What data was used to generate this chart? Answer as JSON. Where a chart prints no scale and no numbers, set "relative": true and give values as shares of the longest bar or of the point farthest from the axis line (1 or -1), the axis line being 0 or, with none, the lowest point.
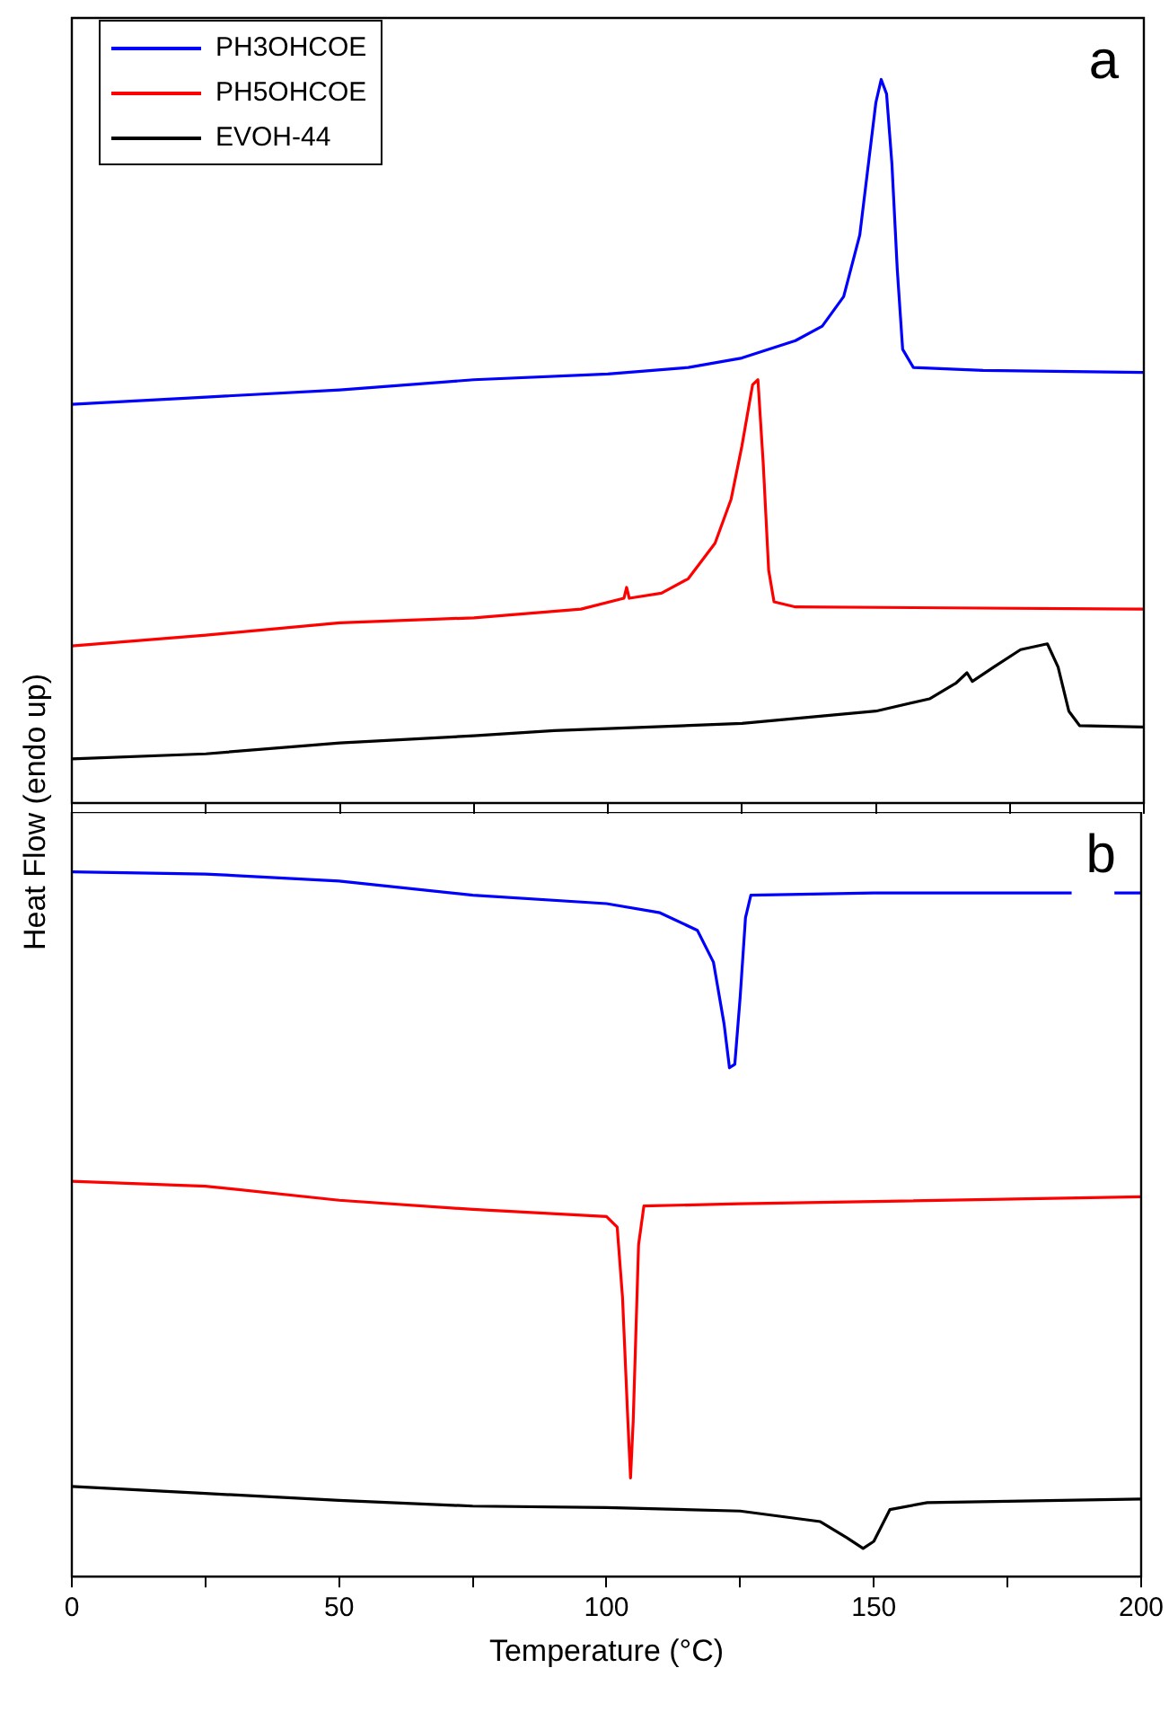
{
  "chart_data": [
    {
      "type": "line",
      "relative": true,
      "ylabel": "Heat Flow (endo up)",
      "xlim": [
        0,
        200
      ],
      "xticks": [
        0,
        {
          "value": 25,
          "label": null
        },
        50,
        {
          "value": 75,
          "label": null
        },
        100,
        {
          "value": 125,
          "label": null
        },
        150,
        {
          "value": 175,
          "label": null
        },
        200
      ],
      "tick_labels": false,
      "legend": "top left",
      "grid": false,
      "marker": "none",
      "line_style": "solid",
      "annotations": [
        "a"
      ],
      "series": [
        {
          "name": "PH3OHCOE",
          "color": "#0000ff",
          "x": [
            0,
            25,
            50,
            75,
            100,
            115,
            125,
            135,
            140,
            144,
            147,
            149,
            150,
            151,
            152,
            153,
            154,
            155,
            157,
            170,
            200
          ],
          "values": [
            0.551,
            0.561,
            0.571,
            0.585,
            0.593,
            0.602,
            0.615,
            0.639,
            0.659,
            0.7,
            0.785,
            0.907,
            0.968,
            1,
            0.98,
            0.883,
            0.737,
            0.627,
            0.602,
            0.598,
            0.595
          ]
        },
        {
          "name": "PH5OHCOE",
          "color": "#ff0000",
          "x": [
            0,
            25,
            50,
            75,
            95,
            103,
            103.5,
            104,
            110,
            115,
            120,
            123,
            125,
            127,
            128,
            129,
            130,
            131,
            135,
            200
          ],
          "values": [
            0.217,
            0.232,
            0.249,
            0.256,
            0.268,
            0.283,
            0.298,
            0.283,
            0.29,
            0.31,
            0.359,
            0.42,
            0.493,
            0.578,
            0.585,
            0.468,
            0.322,
            0.278,
            0.271,
            0.268
          ]
        },
        {
          "name": "EVOH-44",
          "color": "#000000",
          "x": [
            0,
            25,
            50,
            75,
            90,
            125,
            150,
            160,
            165,
            167,
            168,
            172,
            177,
            182,
            184,
            186,
            188,
            200
          ],
          "values": [
            0.061,
            0.068,
            0.083,
            0.093,
            0.1,
            0.11,
            0.127,
            0.144,
            0.166,
            0.18,
            0.168,
            0.188,
            0.212,
            0.22,
            0.188,
            0.127,
            0.107,
            0.105
          ]
        }
      ]
    },
    {
      "type": "line",
      "relative": true,
      "xlabel": "Temperature (°C)",
      "xlim": [
        0,
        200
      ],
      "xticks": [
        0,
        {
          "value": 25,
          "label": null
        },
        50,
        {
          "value": 75,
          "label": null
        },
        100,
        {
          "value": 125,
          "label": null
        },
        150,
        {
          "value": 175,
          "label": null
        },
        200
      ],
      "tick_labels": "x",
      "grid": false,
      "marker": "none",
      "line_style": "solid",
      "annotations": [
        "b"
      ],
      "series": [
        {
          "color": "#0000ff",
          "x": [
            0,
            25,
            50,
            75,
            100,
            110,
            117,
            120,
            122,
            123,
            124,
            125,
            126,
            127,
            150,
            187,
            190,
            195,
            200
          ],
          "values": [
            1,
            0.997,
            0.987,
            0.967,
            0.955,
            0.942,
            0.917,
            0.872,
            0.784,
            0.722,
            0.727,
            0.822,
            0.935,
            0.967,
            0.97,
            0.97,
            null,
            0.97,
            0.97
          ]
        },
        {
          "color": "#ff0000",
          "x": [
            0,
            25,
            50,
            75,
            100,
            102,
            103,
            104,
            104.5,
            105,
            106,
            107,
            125,
            200
          ],
          "values": [
            0.561,
            0.554,
            0.534,
            0.521,
            0.511,
            0.496,
            0.396,
            0.221,
            0.14,
            0.221,
            0.471,
            0.526,
            0.529,
            0.539
          ]
        },
        {
          "color": "#000000",
          "x": [
            0,
            25,
            50,
            75,
            100,
            125,
            140,
            145,
            148,
            150,
            153,
            160,
            200
          ],
          "values": [
            0.128,
            0.118,
            0.108,
            0.1,
            0.098,
            0.093,
            0.078,
            0.055,
            0.04,
            0.05,
            0.095,
            0.105,
            0.11
          ]
        }
      ]
    }
  ]
}
